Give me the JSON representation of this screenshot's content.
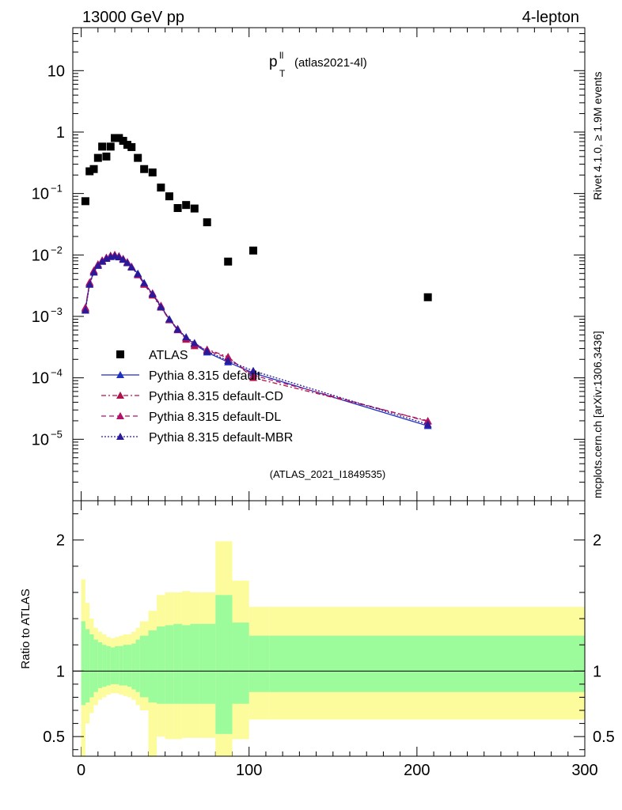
{
  "chart_data": {
    "type": "scatter",
    "header_left": "13000 GeV pp",
    "header_right": "4-lepton",
    "title_main": "p",
    "title_sup": "ll",
    "title_sub": "T",
    "title_paren": "(atlas2021-4l)",
    "side_label_top": "Rivet 4.1.0, ≥ 1.9M events",
    "side_label_bottom": "mcplots.cern.ch [arXiv:1306.3436]",
    "analysis_id": "(ATLAS_2021_I1849535)",
    "ratio_ylabel": "Ratio to ATLAS",
    "x_range": [
      -5,
      300
    ],
    "x_ticks": [
      0,
      100,
      200,
      300
    ],
    "x_tick_labels": [
      "0",
      "100",
      "200",
      "300"
    ],
    "main_y_range": [
      1e-06,
      50
    ],
    "main_y_ticks": [
      1e-05,
      0.0001,
      0.001,
      0.01,
      0.1,
      1,
      10
    ],
    "main_y_tick_labels": [
      {
        "base": "10",
        "exp": "−5"
      },
      {
        "base": "10",
        "exp": "−4"
      },
      {
        "base": "10",
        "exp": "−3"
      },
      {
        "base": "10",
        "exp": "−2"
      },
      {
        "base": "10",
        "exp": "−1"
      },
      {
        "base": "1",
        "exp": ""
      },
      {
        "base": "10",
        "exp": ""
      }
    ],
    "ratio_y_range": [
      0.35,
      2.3
    ],
    "ratio_y_ticks": [
      0.5,
      1,
      2
    ],
    "ratio_y_tick_labels": [
      "0.5",
      "1",
      "2"
    ],
    "legend_entries": [
      {
        "label": "ATLAS",
        "color": "#000000",
        "marker": "square",
        "line": "none"
      },
      {
        "label": "Pythia 8.315 default",
        "color": "#1f2fbf",
        "marker": "triangle",
        "line": "solid"
      },
      {
        "label": "Pythia 8.315 default-CD",
        "color": "#b0114a",
        "marker": "triangle",
        "line": "dashdot"
      },
      {
        "label": "Pythia 8.315 default-DL",
        "color": "#b0116a",
        "marker": "triangle",
        "line": "dashed"
      },
      {
        "label": "Pythia 8.315 default-MBR",
        "color": "#2a1a9a",
        "marker": "triangle",
        "line": "dotted"
      }
    ],
    "atlas_x": [
      2.5,
      5,
      7.5,
      10,
      12.5,
      15,
      17.5,
      20,
      22.5,
      25,
      27.5,
      30,
      33.75,
      37.5,
      42.5,
      47.5,
      52.5,
      57.5,
      62.5,
      67.5,
      75,
      87.5,
      102.5,
      206.5
    ],
    "atlas_y": [
      0.075,
      0.23,
      0.25,
      0.38,
      0.58,
      0.4,
      0.58,
      0.8,
      0.8,
      0.72,
      0.62,
      0.57,
      0.38,
      0.25,
      0.22,
      0.125,
      0.09,
      0.058,
      0.065,
      0.057,
      0.034,
      0.0078,
      0.0118,
      0.00205
    ],
    "mc_x": [
      2.5,
      5,
      7.5,
      10,
      12.5,
      15,
      17.5,
      20,
      22.5,
      25,
      27.5,
      30,
      33.75,
      37.5,
      42.5,
      47.5,
      52.5,
      57.5,
      62.5,
      67.5,
      75,
      87.5,
      102.5,
      206.5
    ],
    "series": [
      {
        "name": "Pythia 8.315 default",
        "values": [
          0.0013,
          0.0034,
          0.0053,
          0.0068,
          0.0079,
          0.0088,
          0.0094,
          0.0097,
          0.0093,
          0.0085,
          0.0075,
          0.0064,
          0.005,
          0.0035,
          0.0023,
          0.00145,
          0.0009,
          0.00062,
          0.00045,
          0.00035,
          0.00026,
          0.00018,
          0.00012,
          1.65e-05
        ]
      },
      {
        "name": "Pythia 8.315 default-CD",
        "values": [
          0.00135,
          0.0036,
          0.0056,
          0.007,
          0.0082,
          0.009,
          0.0098,
          0.0101,
          0.0096,
          0.0087,
          0.0076,
          0.0063,
          0.0048,
          0.0033,
          0.0022,
          0.0014,
          0.00088,
          0.00063,
          0.00042,
          0.00033,
          0.00029,
          0.00022,
          0.0001,
          2e-05
        ]
      },
      {
        "name": "Pythia 8.315 default-DL",
        "values": [
          0.0014,
          0.0035,
          0.0055,
          0.0071,
          0.0081,
          0.0091,
          0.0097,
          0.01,
          0.0095,
          0.0086,
          0.0077,
          0.0065,
          0.0047,
          0.0034,
          0.0024,
          0.0015,
          0.00087,
          0.0006,
          0.00044,
          0.00036,
          0.00028,
          0.00021,
          0.00011,
          1.95e-05
        ]
      },
      {
        "name": "Pythia 8.315 default-MBR",
        "values": [
          0.00125,
          0.0033,
          0.0052,
          0.0067,
          0.0078,
          0.0087,
          0.0093,
          0.0096,
          0.0092,
          0.0084,
          0.0074,
          0.0063,
          0.0049,
          0.0035,
          0.0023,
          0.00142,
          0.0009,
          0.00061,
          0.00046,
          0.00037,
          0.00027,
          0.00019,
          0.00013,
          1.75e-05
        ]
      }
    ],
    "band_edges": [
      0,
      2.5,
      5,
      7.5,
      10,
      12.5,
      15,
      17.5,
      20,
      22.5,
      25,
      27.5,
      30,
      32.5,
      35,
      40,
      45,
      50,
      55,
      60,
      65,
      70,
      80,
      90,
      100,
      112,
      300
    ],
    "band_stat_up": [
      1.38,
      1.32,
      1.28,
      1.24,
      1.22,
      1.2,
      1.19,
      1.18,
      1.19,
      1.19,
      1.2,
      1.2,
      1.21,
      1.24,
      1.27,
      1.31,
      1.34,
      1.35,
      1.36,
      1.35,
      1.36,
      1.36,
      1.58,
      1.37,
      1.27,
      1.27
    ],
    "band_stat_dn": [
      0.74,
      0.76,
      0.8,
      0.84,
      0.87,
      0.88,
      0.89,
      0.9,
      0.9,
      0.89,
      0.89,
      0.88,
      0.86,
      0.84,
      0.8,
      0.76,
      0.75,
      0.75,
      0.75,
      0.75,
      0.75,
      0.75,
      0.52,
      0.75,
      0.84,
      0.84
    ],
    "band_tot_up": [
      1.7,
      1.52,
      1.4,
      1.33,
      1.3,
      1.28,
      1.26,
      1.25,
      1.26,
      1.27,
      1.28,
      1.28,
      1.3,
      1.33,
      1.38,
      1.46,
      1.58,
      1.6,
      1.6,
      1.61,
      1.6,
      1.6,
      1.99,
      1.69,
      1.49,
      1.49
    ],
    "band_tot_dn": [
      0.35,
      0.6,
      0.68,
      0.74,
      0.78,
      0.8,
      0.82,
      0.83,
      0.83,
      0.82,
      0.81,
      0.8,
      0.78,
      0.74,
      0.7,
      0.35,
      0.5,
      0.48,
      0.48,
      0.49,
      0.49,
      0.49,
      0.35,
      0.48,
      0.63,
      0.63
    ],
    "colors": {
      "stat_band": "#9cfc9c",
      "total_band": "#fcfc9c",
      "atlas": "#000000"
    }
  }
}
